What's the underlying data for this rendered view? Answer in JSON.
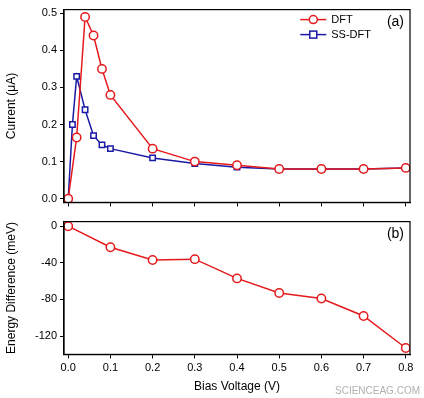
{
  "chart_data": [
    {
      "type": "line",
      "title": "(a)",
      "y_label": "Current (μA)",
      "x": [
        0,
        0.01,
        0.02,
        0.04,
        0.06,
        0.08,
        0.1,
        0.2,
        0.3,
        0.4,
        0.5,
        0.6,
        0.7,
        0.8
      ],
      "series": [
        {
          "name": "DFT",
          "color": "#e41a1c",
          "marker": "circle",
          "values": [
            0,
            null,
            0.165,
            0.49,
            0.44,
            0.35,
            0.28,
            0.135,
            0.1,
            0.09,
            0.08,
            0.08,
            0.08,
            0.083
          ]
        },
        {
          "name": "SS-DFT",
          "color": "#1a1aa6",
          "marker": "square",
          "values": [
            0,
            0.2,
            0.33,
            0.24,
            0.17,
            0.145,
            0.135,
            0.11,
            0.095,
            0.085,
            0.08,
            0.08,
            0.08,
            0.083
          ]
        }
      ],
      "xlim": [
        -0.01,
        0.81
      ],
      "xticks": [
        0,
        0.1,
        0.2,
        0.3,
        0.4,
        0.5,
        0.6,
        0.7,
        0.8
      ],
      "ylim": [
        -0.01,
        0.51
      ],
      "yticks": [
        {
          "value": 0,
          "label": "0.0"
        },
        0.1,
        0.2,
        0.3,
        0.4,
        0.5
      ],
      "legend": "upper right",
      "grid": false,
      "tick_labels": "y"
    },
    {
      "type": "line",
      "title": "(b)",
      "x_label": "Bias Voltage (V)",
      "y_label": "Energy Difference (meV)",
      "x": [
        0,
        0.1,
        0.2,
        0.3,
        0.4,
        0.5,
        0.6,
        0.7,
        0.8
      ],
      "values": [
        0,
        -23,
        -37,
        -36,
        -57,
        -73,
        -79,
        -98,
        -133
      ],
      "color": "#e41a1c",
      "marker": "circle",
      "xlim": [
        -0.01,
        0.81
      ],
      "xticks": [
        {
          "value": 0,
          "label": "0.0"
        },
        0.1,
        0.2,
        0.3,
        0.4,
        0.5,
        0.6,
        0.7,
        0.8
      ],
      "ylim": [
        -140,
        5
      ],
      "yticks": [
        0,
        -40,
        -80,
        -120
      ],
      "grid": false,
      "annotations": [
        "SCIENCEAG.COM"
      ]
    }
  ]
}
